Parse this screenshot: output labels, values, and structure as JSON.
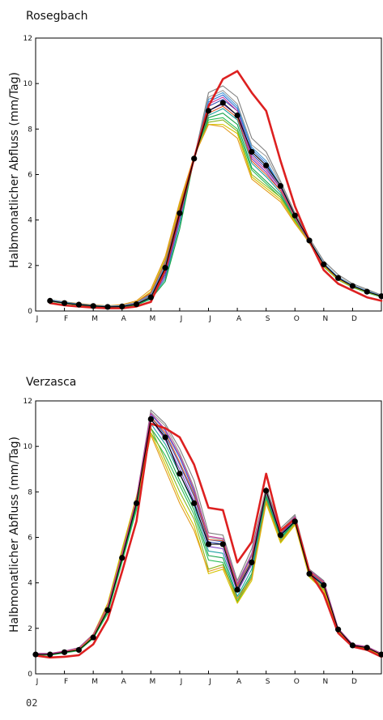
{
  "footer_label": "02",
  "colors": {
    "ensemble": [
      "#7f7f7f",
      "#9a9a9a",
      "#2e6fd6",
      "#3a4fb3",
      "#7b3fc4",
      "#1fa3a3",
      "#18a34a",
      "#2fbf5b",
      "#8ab51f",
      "#d6c400",
      "#e39a1e",
      "#e05a2b",
      "#c43aa0",
      "#4d9cd4",
      "#5fb9a8"
    ],
    "reference": "#dd2020",
    "observed": "#000000"
  },
  "chart_data": [
    {
      "type": "line",
      "title": "Rosegbach",
      "ylabel": "Halbmonatlicher Abfluss (mm/Tag)",
      "xlabel": "",
      "xticks": [
        "J",
        "F",
        "M",
        "A",
        "M",
        "J",
        "J",
        "A",
        "S",
        "O",
        "N",
        "D"
      ],
      "ylim": [
        0,
        12
      ],
      "yticks": [
        0,
        2,
        4,
        6,
        8,
        10,
        12
      ],
      "x": [
        0.5,
        1,
        1.5,
        2,
        2.5,
        3,
        3.5,
        4,
        4.5,
        5,
        5.5,
        6,
        6.5,
        7,
        7.5,
        8,
        8.5,
        9,
        9.5,
        10,
        10.5,
        11,
        11.5,
        12
      ],
      "series": [
        {
          "role": "observed",
          "values": [
            0.45,
            0.35,
            0.28,
            0.22,
            0.18,
            0.2,
            0.3,
            0.6,
            1.9,
            4.3,
            6.7,
            8.8,
            9.15,
            8.6,
            7.0,
            6.4,
            5.5,
            4.2,
            3.1,
            2.05,
            1.45,
            1.1,
            0.85,
            0.65
          ]
        },
        {
          "role": "reference",
          "values": [
            0.35,
            0.25,
            0.2,
            0.15,
            0.12,
            0.12,
            0.2,
            0.4,
            1.8,
            4.3,
            6.7,
            9.0,
            10.2,
            10.55,
            9.6,
            8.8,
            6.6,
            4.6,
            3.1,
            1.8,
            1.2,
            0.9,
            0.6,
            0.45
          ]
        },
        {
          "role": "ensemble",
          "values": [
            0.5,
            0.4,
            0.32,
            0.25,
            0.22,
            0.25,
            0.38,
            0.75,
            2.2,
            4.5,
            6.7,
            9.6,
            9.9,
            9.4,
            7.6,
            7.0,
            5.7,
            4.3,
            3.2,
            2.2,
            1.6,
            1.2,
            0.95,
            0.7
          ]
        },
        {
          "role": "ensemble",
          "values": [
            0.48,
            0.38,
            0.3,
            0.24,
            0.2,
            0.23,
            0.35,
            0.65,
            1.9,
            4.4,
            6.7,
            9.4,
            9.7,
            9.1,
            7.3,
            6.8,
            5.6,
            4.2,
            3.1,
            2.1,
            1.5,
            1.15,
            0.9,
            0.68
          ]
        },
        {
          "role": "ensemble",
          "values": [
            0.47,
            0.37,
            0.29,
            0.23,
            0.19,
            0.21,
            0.32,
            0.62,
            1.7,
            4.2,
            6.7,
            9.2,
            9.5,
            8.9,
            7.1,
            6.5,
            5.5,
            4.2,
            3.1,
            2.05,
            1.45,
            1.1,
            0.87,
            0.66
          ]
        },
        {
          "role": "ensemble",
          "values": [
            0.46,
            0.36,
            0.28,
            0.22,
            0.18,
            0.2,
            0.3,
            0.6,
            1.6,
            4.1,
            6.7,
            9.0,
            9.3,
            8.8,
            6.9,
            6.3,
            5.4,
            4.15,
            3.05,
            2.0,
            1.42,
            1.08,
            0.85,
            0.64
          ]
        },
        {
          "role": "ensemble",
          "values": [
            0.45,
            0.35,
            0.27,
            0.21,
            0.17,
            0.19,
            0.28,
            0.58,
            1.5,
            4.0,
            6.7,
            8.8,
            9.1,
            8.6,
            6.7,
            6.1,
            5.3,
            4.1,
            3.05,
            2.0,
            1.4,
            1.07,
            0.84,
            0.63
          ]
        },
        {
          "role": "ensemble",
          "values": [
            0.44,
            0.34,
            0.26,
            0.2,
            0.17,
            0.18,
            0.27,
            0.55,
            1.4,
            3.8,
            6.7,
            8.6,
            8.9,
            8.4,
            6.5,
            5.9,
            5.2,
            4.05,
            3.0,
            1.95,
            1.38,
            1.05,
            0.82,
            0.62
          ]
        },
        {
          "role": "ensemble",
          "values": [
            0.43,
            0.33,
            0.26,
            0.2,
            0.16,
            0.18,
            0.26,
            0.52,
            1.3,
            3.6,
            6.7,
            8.5,
            8.7,
            8.2,
            6.3,
            5.7,
            5.1,
            4.0,
            3.0,
            1.95,
            1.37,
            1.04,
            0.81,
            0.61
          ]
        },
        {
          "role": "ensemble",
          "values": [
            0.44,
            0.34,
            0.27,
            0.21,
            0.17,
            0.19,
            0.3,
            0.6,
            1.8,
            4.4,
            6.8,
            8.4,
            8.5,
            8.0,
            6.2,
            5.6,
            5.0,
            4.0,
            3.0,
            1.95,
            1.37,
            1.05,
            0.82,
            0.62
          ]
        },
        {
          "role": "ensemble",
          "values": [
            0.45,
            0.35,
            0.28,
            0.22,
            0.18,
            0.21,
            0.33,
            0.68,
            2.0,
            4.6,
            6.8,
            8.3,
            8.4,
            7.9,
            6.0,
            5.5,
            5.0,
            3.95,
            3.0,
            1.95,
            1.38,
            1.06,
            0.83,
            0.63
          ]
        },
        {
          "role": "ensemble",
          "values": [
            0.47,
            0.37,
            0.3,
            0.24,
            0.2,
            0.24,
            0.4,
            0.85,
            2.3,
            4.7,
            6.8,
            8.2,
            8.2,
            7.8,
            5.9,
            5.4,
            4.9,
            3.9,
            3.0,
            2.0,
            1.4,
            1.08,
            0.85,
            0.65
          ]
        },
        {
          "role": "ensemble",
          "values": [
            0.5,
            0.4,
            0.33,
            0.27,
            0.23,
            0.28,
            0.45,
            0.95,
            2.4,
            4.8,
            6.8,
            8.2,
            8.1,
            7.6,
            5.8,
            5.3,
            4.8,
            3.85,
            3.0,
            2.0,
            1.42,
            1.1,
            0.87,
            0.67
          ]
        },
        {
          "role": "ensemble",
          "values": [
            0.48,
            0.38,
            0.31,
            0.25,
            0.21,
            0.25,
            0.38,
            0.8,
            2.1,
            4.5,
            6.75,
            8.7,
            9.0,
            8.5,
            6.6,
            6.0,
            5.3,
            4.1,
            3.05,
            2.05,
            1.45,
            1.1,
            0.86,
            0.66
          ]
        },
        {
          "role": "ensemble",
          "values": [
            0.46,
            0.36,
            0.29,
            0.23,
            0.19,
            0.22,
            0.34,
            0.7,
            1.95,
            4.35,
            6.7,
            9.1,
            9.4,
            8.8,
            6.8,
            6.2,
            5.4,
            4.15,
            3.05,
            2.05,
            1.44,
            1.1,
            0.86,
            0.65
          ]
        },
        {
          "role": "ensemble",
          "values": [
            0.49,
            0.39,
            0.31,
            0.25,
            0.21,
            0.24,
            0.36,
            0.72,
            2.0,
            4.4,
            6.75,
            9.3,
            9.6,
            9.0,
            7.2,
            6.6,
            5.5,
            4.2,
            3.1,
            2.1,
            1.48,
            1.13,
            0.88,
            0.67
          ]
        }
      ]
    },
    {
      "type": "line",
      "title": "Verzasca",
      "ylabel": "Halbmonatlicher Abfluss (mm/Tag)",
      "xlabel": "",
      "xticks": [
        "J",
        "F",
        "M",
        "A",
        "M",
        "J",
        "J",
        "A",
        "S",
        "O",
        "N",
        "D"
      ],
      "ylim": [
        0,
        12
      ],
      "yticks": [
        0,
        2,
        4,
        6,
        8,
        10,
        12
      ],
      "x": [
        0,
        0.5,
        1,
        1.5,
        2,
        2.5,
        3,
        3.5,
        4,
        4.5,
        5,
        5.5,
        6,
        6.5,
        7,
        7.5,
        8,
        8.5,
        9,
        9.5,
        10,
        10.5,
        11,
        11.5,
        12
      ],
      "series": [
        {
          "role": "observed",
          "values": [
            0.85,
            0.85,
            0.95,
            1.05,
            1.6,
            2.8,
            5.1,
            7.5,
            11.2,
            10.4,
            8.8,
            7.5,
            5.7,
            5.7,
            3.7,
            4.9,
            8.05,
            6.1,
            6.7,
            4.4,
            3.9,
            1.95,
            1.25,
            1.15,
            0.85
          ]
        },
        {
          "role": "reference",
          "values": [
            0.8,
            0.72,
            0.75,
            0.82,
            1.3,
            2.4,
            4.5,
            6.7,
            11.0,
            10.8,
            10.4,
            9.2,
            7.3,
            7.2,
            4.9,
            5.8,
            8.8,
            6.3,
            6.8,
            4.5,
            3.5,
            1.8,
            1.2,
            1.05,
            0.75
          ]
        },
        {
          "role": "ensemble",
          "values": [
            0.9,
            0.9,
            1.0,
            1.15,
            1.75,
            3.0,
            5.3,
            7.7,
            11.6,
            11.0,
            9.9,
            8.5,
            6.2,
            6.1,
            4.1,
            5.5,
            8.2,
            6.4,
            7.0,
            4.6,
            4.1,
            2.0,
            1.3,
            1.2,
            0.9
          ]
        },
        {
          "role": "ensemble",
          "values": [
            0.88,
            0.88,
            0.98,
            1.1,
            1.7,
            2.95,
            5.2,
            7.6,
            11.5,
            10.9,
            9.7,
            8.2,
            6.0,
            5.9,
            4.0,
            5.3,
            8.1,
            6.3,
            6.95,
            4.55,
            4.05,
            1.98,
            1.28,
            1.18,
            0.88
          ]
        },
        {
          "role": "ensemble",
          "values": [
            0.87,
            0.87,
            0.97,
            1.08,
            1.68,
            2.9,
            5.15,
            7.55,
            11.4,
            10.7,
            9.5,
            8.0,
            5.9,
            5.8,
            3.9,
            5.2,
            8.0,
            6.2,
            6.9,
            4.5,
            4.0,
            1.97,
            1.27,
            1.17,
            0.87
          ]
        },
        {
          "role": "ensemble",
          "values": [
            0.86,
            0.86,
            0.96,
            1.07,
            1.65,
            2.85,
            5.1,
            7.5,
            11.3,
            10.5,
            9.2,
            7.8,
            5.8,
            5.7,
            3.8,
            5.0,
            7.95,
            6.15,
            6.85,
            4.45,
            3.95,
            1.96,
            1.26,
            1.16,
            0.86
          ]
        },
        {
          "role": "ensemble",
          "values": [
            0.85,
            0.85,
            0.95,
            1.05,
            1.62,
            2.8,
            5.05,
            7.45,
            11.2,
            10.3,
            9.0,
            7.6,
            5.6,
            5.5,
            3.6,
            4.8,
            7.9,
            6.1,
            6.8,
            4.4,
            3.9,
            1.95,
            1.25,
            1.15,
            0.85
          ]
        },
        {
          "role": "ensemble",
          "values": [
            0.84,
            0.84,
            0.94,
            1.04,
            1.6,
            2.75,
            5.0,
            7.4,
            11.0,
            10.1,
            8.8,
            7.4,
            5.4,
            5.3,
            3.4,
            4.6,
            7.85,
            6.0,
            6.75,
            4.35,
            3.85,
            1.93,
            1.24,
            1.14,
            0.84
          ]
        },
        {
          "role": "ensemble",
          "values": [
            0.83,
            0.83,
            0.93,
            1.03,
            1.58,
            2.7,
            4.95,
            7.3,
            10.8,
            9.9,
            8.5,
            7.2,
            5.2,
            5.1,
            3.3,
            4.4,
            7.8,
            5.95,
            6.7,
            4.3,
            3.8,
            1.92,
            1.23,
            1.13,
            0.83
          ]
        },
        {
          "role": "ensemble",
          "values": [
            0.82,
            0.82,
            0.92,
            1.02,
            1.55,
            2.65,
            4.9,
            7.2,
            10.6,
            9.6,
            8.3,
            7.0,
            5.0,
            4.9,
            3.2,
            4.3,
            7.7,
            5.9,
            6.65,
            4.25,
            3.75,
            1.9,
            1.22,
            1.12,
            0.82
          ]
        },
        {
          "role": "ensemble",
          "values": [
            0.86,
            0.86,
            0.97,
            1.08,
            1.7,
            3.0,
            5.4,
            7.7,
            10.8,
            9.4,
            8.0,
            6.8,
            4.6,
            4.8,
            3.15,
            4.2,
            7.6,
            5.8,
            6.6,
            4.3,
            3.7,
            1.9,
            1.22,
            1.12,
            0.82
          ]
        },
        {
          "role": "ensemble",
          "values": [
            0.87,
            0.87,
            0.98,
            1.1,
            1.75,
            3.1,
            5.5,
            7.8,
            10.6,
            9.2,
            7.7,
            6.5,
            4.4,
            4.6,
            3.1,
            4.1,
            7.5,
            5.75,
            6.55,
            4.25,
            3.65,
            1.88,
            1.21,
            1.11,
            0.81
          ]
        },
        {
          "role": "ensemble",
          "values": [
            0.85,
            0.85,
            0.96,
            1.06,
            1.65,
            2.9,
            5.2,
            7.55,
            10.5,
            9.0,
            7.5,
            6.3,
            4.5,
            4.7,
            3.3,
            4.2,
            7.6,
            5.85,
            6.6,
            4.35,
            3.8,
            1.92,
            1.23,
            1.13,
            0.83
          ]
        },
        {
          "role": "ensemble",
          "values": [
            0.88,
            0.88,
            0.99,
            1.12,
            1.72,
            2.95,
            5.25,
            7.65,
            11.3,
            10.6,
            9.3,
            7.9,
            5.9,
            5.85,
            3.85,
            5.05,
            8.0,
            6.2,
            6.85,
            4.5,
            4.0,
            1.97,
            1.27,
            1.17,
            0.87
          ]
        },
        {
          "role": "ensemble",
          "values": [
            0.89,
            0.89,
            1.0,
            1.13,
            1.73,
            2.98,
            5.28,
            7.68,
            11.45,
            10.75,
            9.6,
            8.1,
            6.05,
            5.95,
            3.95,
            5.25,
            8.05,
            6.25,
            6.9,
            4.55,
            4.05,
            1.99,
            1.29,
            1.19,
            0.89
          ]
        }
      ]
    }
  ]
}
